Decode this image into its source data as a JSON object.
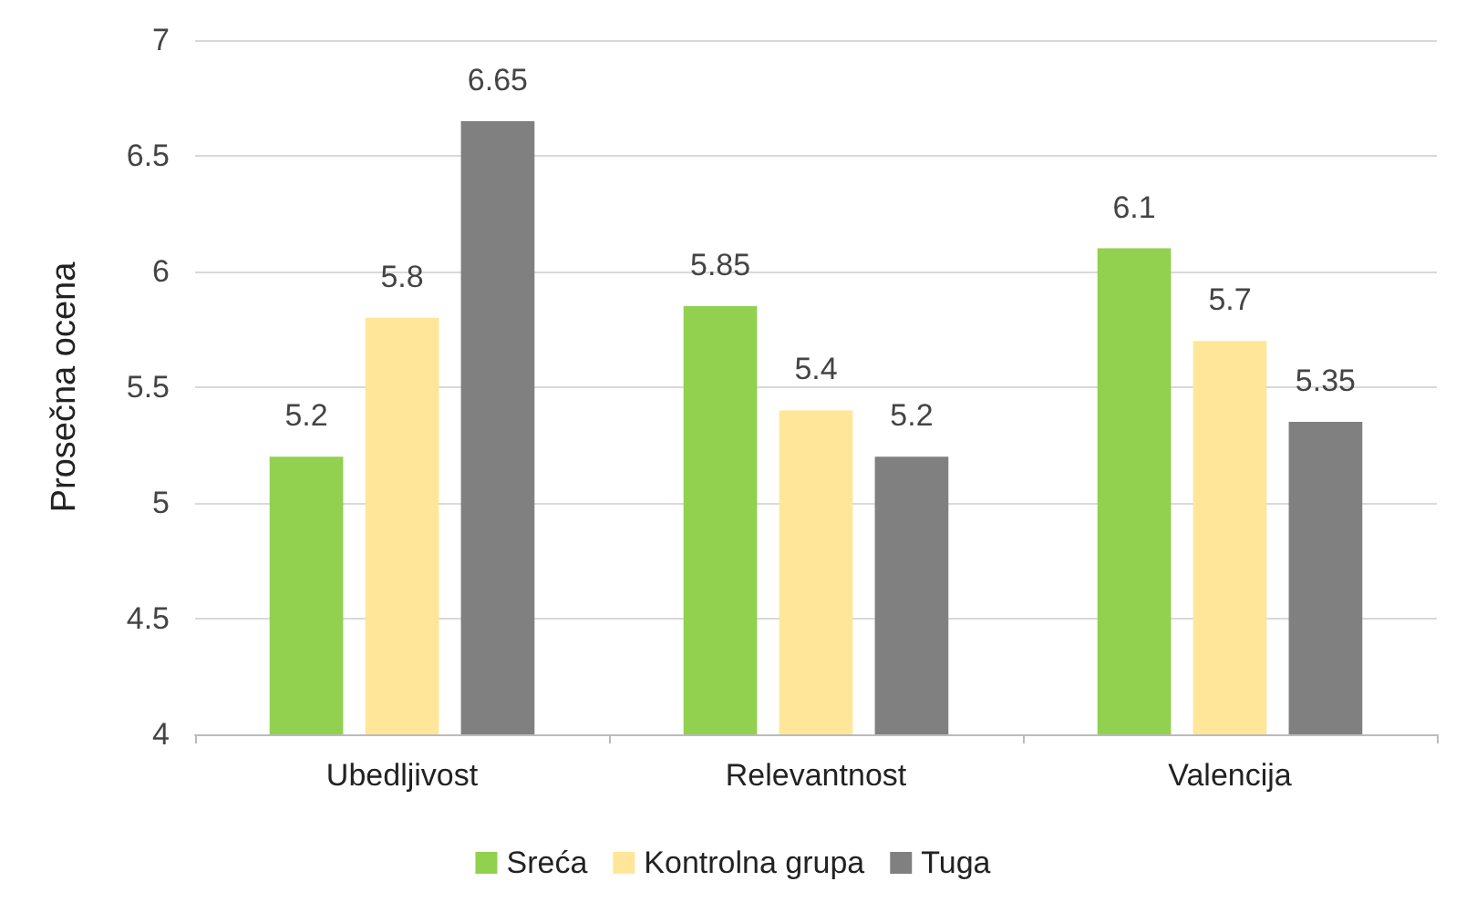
{
  "chart_data": {
    "type": "bar",
    "ylabel": "Prosečna ocena",
    "categories": [
      "Ubedljivost",
      "Relevantnost",
      "Valencija"
    ],
    "series": [
      {
        "name": "Sreća",
        "color": "#92d050",
        "values": [
          5.2,
          5.85,
          6.1
        ]
      },
      {
        "name": "Kontrolna grupa",
        "color": "#ffe699",
        "values": [
          5.8,
          5.4,
          5.7
        ]
      },
      {
        "name": "Tuga",
        "color": "#808080",
        "values": [
          6.65,
          5.2,
          5.35
        ]
      }
    ],
    "ylim": [
      4,
      7
    ],
    "yticks": [
      4,
      4.5,
      5,
      5.5,
      6,
      6.5,
      7
    ],
    "grid": "y",
    "legend": "bottom",
    "data_labels": true
  }
}
